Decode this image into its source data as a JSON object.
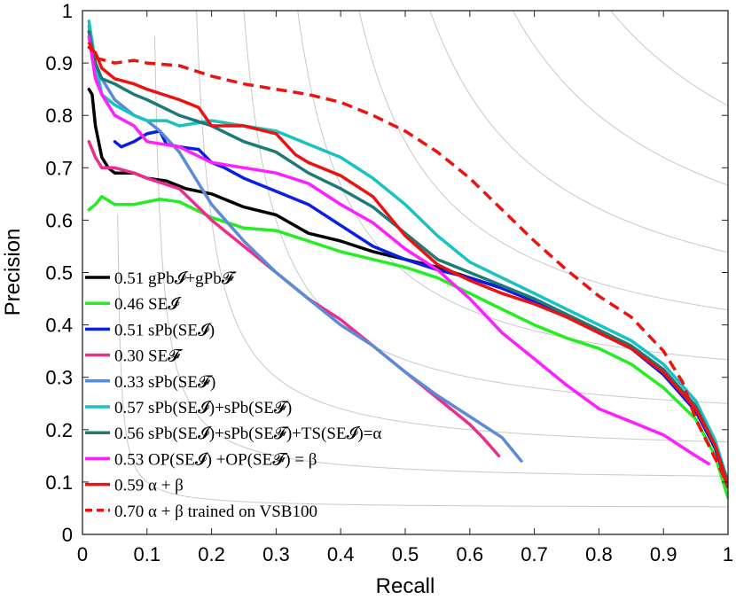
{
  "chart_data": {
    "type": "line",
    "xlabel": "Recall",
    "ylabel": "Precision",
    "xlim": [
      0,
      1
    ],
    "ylim": [
      0,
      1
    ],
    "xticks": [
      0,
      0.1,
      0.2,
      0.3,
      0.4,
      0.5,
      0.6,
      0.7,
      0.8,
      0.9,
      1
    ],
    "yticks": [
      0,
      0.1,
      0.2,
      0.3,
      0.4,
      0.5,
      0.6,
      0.7,
      0.8,
      0.9,
      1
    ],
    "xtick_labels": [
      "0",
      "0.1",
      "0.2",
      "0.3",
      "0.4",
      "0.5",
      "0.6",
      "0.7",
      "0.8",
      "0.9",
      "1"
    ],
    "ytick_labels": [
      "0",
      "0.1",
      "0.2",
      "0.3",
      "0.4",
      "0.5",
      "0.6",
      "0.7",
      "0.8",
      "0.9",
      "1"
    ],
    "grid": false,
    "iso_f_contours": [
      0.1,
      0.2,
      0.3,
      0.4,
      0.5,
      0.6,
      0.7,
      0.8,
      0.9
    ],
    "legend_position": "bottom-left",
    "series": [
      {
        "name": "0.51 gPb_I+gPb_F",
        "legend": {
          "score": "0.51",
          "label": "gPb𝓘+gPb𝓕"
        },
        "color": "#000000",
        "dash": "solid",
        "points": [
          [
            0.01,
            0.85
          ],
          [
            0.015,
            0.84
          ],
          [
            0.02,
            0.78
          ],
          [
            0.03,
            0.72
          ],
          [
            0.04,
            0.7
          ],
          [
            0.05,
            0.69
          ],
          [
            0.08,
            0.69
          ],
          [
            0.1,
            0.68
          ],
          [
            0.13,
            0.675
          ],
          [
            0.16,
            0.66
          ],
          [
            0.2,
            0.65
          ],
          [
            0.25,
            0.625
          ],
          [
            0.3,
            0.61
          ],
          [
            0.35,
            0.575
          ],
          [
            0.4,
            0.56
          ],
          [
            0.45,
            0.54
          ],
          [
            0.5,
            0.525
          ],
          [
            0.55,
            0.51
          ],
          [
            0.6,
            0.49
          ],
          [
            0.65,
            0.47
          ],
          [
            0.7,
            0.445
          ],
          [
            0.75,
            0.42
          ],
          [
            0.8,
            0.39
          ],
          [
            0.85,
            0.36
          ],
          [
            0.9,
            0.31
          ],
          [
            0.95,
            0.24
          ],
          [
            0.98,
            0.17
          ],
          [
            1.0,
            0.1
          ]
        ]
      },
      {
        "name": "0.46 SE_I",
        "legend": {
          "score": "0.46",
          "label": "SE𝓘"
        },
        "color": "#22ee22",
        "dash": "solid",
        "points": [
          [
            0.01,
            0.62
          ],
          [
            0.02,
            0.63
          ],
          [
            0.03,
            0.645
          ],
          [
            0.05,
            0.63
          ],
          [
            0.08,
            0.63
          ],
          [
            0.1,
            0.635
          ],
          [
            0.12,
            0.64
          ],
          [
            0.15,
            0.635
          ],
          [
            0.2,
            0.605
          ],
          [
            0.25,
            0.585
          ],
          [
            0.3,
            0.58
          ],
          [
            0.35,
            0.56
          ],
          [
            0.4,
            0.54
          ],
          [
            0.45,
            0.525
          ],
          [
            0.5,
            0.51
          ],
          [
            0.55,
            0.49
          ],
          [
            0.6,
            0.46
          ],
          [
            0.65,
            0.43
          ],
          [
            0.7,
            0.4
          ],
          [
            0.75,
            0.375
          ],
          [
            0.8,
            0.355
          ],
          [
            0.85,
            0.325
          ],
          [
            0.9,
            0.28
          ],
          [
            0.95,
            0.22
          ],
          [
            0.98,
            0.15
          ],
          [
            1.0,
            0.07
          ]
        ]
      },
      {
        "name": "0.51 sPb(SE_I)",
        "legend": {
          "score": "0.51",
          "label": "sPb(SE𝓘)"
        },
        "color": "#0b1ee6",
        "dash": "solid",
        "points": [
          [
            0.05,
            0.75
          ],
          [
            0.06,
            0.74
          ],
          [
            0.08,
            0.75
          ],
          [
            0.1,
            0.765
          ],
          [
            0.12,
            0.77
          ],
          [
            0.13,
            0.745
          ],
          [
            0.15,
            0.74
          ],
          [
            0.18,
            0.735
          ],
          [
            0.2,
            0.71
          ],
          [
            0.22,
            0.7
          ],
          [
            0.25,
            0.68
          ],
          [
            0.3,
            0.655
          ],
          [
            0.35,
            0.63
          ],
          [
            0.4,
            0.59
          ],
          [
            0.45,
            0.55
          ],
          [
            0.5,
            0.525
          ],
          [
            0.55,
            0.505
          ],
          [
            0.6,
            0.49
          ],
          [
            0.65,
            0.47
          ],
          [
            0.7,
            0.445
          ],
          [
            0.75,
            0.415
          ],
          [
            0.8,
            0.385
          ],
          [
            0.85,
            0.355
          ],
          [
            0.9,
            0.305
          ],
          [
            0.95,
            0.235
          ],
          [
            0.98,
            0.165
          ],
          [
            1.0,
            0.09
          ]
        ]
      },
      {
        "name": "0.30 SE_F",
        "legend": {
          "score": "0.30",
          "label": "SE𝓕"
        },
        "color": "#ee2c8e",
        "dash": "solid",
        "points": [
          [
            0.01,
            0.75
          ],
          [
            0.02,
            0.72
          ],
          [
            0.03,
            0.7
          ],
          [
            0.05,
            0.7
          ],
          [
            0.08,
            0.69
          ],
          [
            0.1,
            0.68
          ],
          [
            0.15,
            0.66
          ],
          [
            0.2,
            0.6
          ],
          [
            0.25,
            0.55
          ],
          [
            0.3,
            0.5
          ],
          [
            0.35,
            0.45
          ],
          [
            0.4,
            0.41
          ],
          [
            0.45,
            0.36
          ],
          [
            0.5,
            0.31
          ],
          [
            0.55,
            0.26
          ],
          [
            0.6,
            0.21
          ],
          [
            0.62,
            0.185
          ],
          [
            0.645,
            0.15
          ]
        ]
      },
      {
        "name": "0.33 sPb(SE_F)",
        "legend": {
          "score": "0.33",
          "label": "sPb(SE𝓕)"
        },
        "color": "#5b8bd6",
        "dash": "solid",
        "points": [
          [
            0.01,
            0.97
          ],
          [
            0.02,
            0.9
          ],
          [
            0.03,
            0.87
          ],
          [
            0.05,
            0.83
          ],
          [
            0.08,
            0.8
          ],
          [
            0.1,
            0.79
          ],
          [
            0.12,
            0.77
          ],
          [
            0.15,
            0.73
          ],
          [
            0.18,
            0.67
          ],
          [
            0.2,
            0.63
          ],
          [
            0.25,
            0.56
          ],
          [
            0.3,
            0.5
          ],
          [
            0.35,
            0.45
          ],
          [
            0.4,
            0.4
          ],
          [
            0.45,
            0.36
          ],
          [
            0.5,
            0.31
          ],
          [
            0.55,
            0.265
          ],
          [
            0.6,
            0.225
          ],
          [
            0.65,
            0.185
          ],
          [
            0.68,
            0.14
          ]
        ]
      },
      {
        "name": "0.57 sPb(SE_I)+sPb(SE_F)",
        "legend": {
          "score": "0.57",
          "label": "sPb(SE𝓘)+sPb(SE𝓕)"
        },
        "color": "#18c2c2",
        "dash": "solid",
        "points": [
          [
            0.01,
            0.98
          ],
          [
            0.02,
            0.9
          ],
          [
            0.03,
            0.84
          ],
          [
            0.05,
            0.82
          ],
          [
            0.08,
            0.8
          ],
          [
            0.1,
            0.79
          ],
          [
            0.13,
            0.79
          ],
          [
            0.15,
            0.78
          ],
          [
            0.2,
            0.79
          ],
          [
            0.25,
            0.78
          ],
          [
            0.3,
            0.77
          ],
          [
            0.35,
            0.745
          ],
          [
            0.4,
            0.72
          ],
          [
            0.45,
            0.68
          ],
          [
            0.5,
            0.63
          ],
          [
            0.55,
            0.57
          ],
          [
            0.6,
            0.52
          ],
          [
            0.65,
            0.49
          ],
          [
            0.7,
            0.46
          ],
          [
            0.75,
            0.43
          ],
          [
            0.8,
            0.4
          ],
          [
            0.85,
            0.37
          ],
          [
            0.9,
            0.325
          ],
          [
            0.95,
            0.255
          ],
          [
            0.98,
            0.18
          ],
          [
            1.0,
            0.1
          ]
        ]
      },
      {
        "name": "0.56 sPb(SE_I)+sPb(SE_F)+TS(SE_I)=α",
        "legend": {
          "score": "0.56",
          "label": "sPb(SE𝓘)+sPb(SE𝓕)+TS(SE𝓘)=α"
        },
        "color": "#1e7a76",
        "dash": "solid",
        "points": [
          [
            0.01,
            0.96
          ],
          [
            0.02,
            0.9
          ],
          [
            0.03,
            0.87
          ],
          [
            0.05,
            0.86
          ],
          [
            0.08,
            0.84
          ],
          [
            0.1,
            0.83
          ],
          [
            0.15,
            0.8
          ],
          [
            0.2,
            0.78
          ],
          [
            0.25,
            0.75
          ],
          [
            0.3,
            0.73
          ],
          [
            0.35,
            0.69
          ],
          [
            0.4,
            0.66
          ],
          [
            0.45,
            0.625
          ],
          [
            0.5,
            0.575
          ],
          [
            0.55,
            0.525
          ],
          [
            0.6,
            0.5
          ],
          [
            0.65,
            0.475
          ],
          [
            0.7,
            0.45
          ],
          [
            0.75,
            0.42
          ],
          [
            0.8,
            0.39
          ],
          [
            0.85,
            0.36
          ],
          [
            0.9,
            0.315
          ],
          [
            0.95,
            0.245
          ],
          [
            0.98,
            0.17
          ],
          [
            1.0,
            0.1
          ]
        ]
      },
      {
        "name": "0.53 OP(SE_I)+OP(SE_F) = β",
        "legend": {
          "score": "0.53",
          "label": "OP(SE𝓘) +OP(SE𝓕) = β"
        },
        "color": "#ff1eff",
        "dash": "solid",
        "points": [
          [
            0.01,
            0.95
          ],
          [
            0.02,
            0.87
          ],
          [
            0.03,
            0.84
          ],
          [
            0.05,
            0.8
          ],
          [
            0.08,
            0.78
          ],
          [
            0.1,
            0.75
          ],
          [
            0.15,
            0.74
          ],
          [
            0.2,
            0.71
          ],
          [
            0.25,
            0.7
          ],
          [
            0.3,
            0.69
          ],
          [
            0.35,
            0.67
          ],
          [
            0.4,
            0.63
          ],
          [
            0.45,
            0.595
          ],
          [
            0.5,
            0.545
          ],
          [
            0.55,
            0.505
          ],
          [
            0.6,
            0.45
          ],
          [
            0.65,
            0.385
          ],
          [
            0.7,
            0.335
          ],
          [
            0.75,
            0.285
          ],
          [
            0.8,
            0.24
          ],
          [
            0.85,
            0.215
          ],
          [
            0.9,
            0.19
          ],
          [
            0.95,
            0.15
          ],
          [
            0.97,
            0.135
          ]
        ]
      },
      {
        "name": "0.59 α + β",
        "legend": {
          "score": "0.59",
          "label": "α + β"
        },
        "color": "#ee1111",
        "dash": "solid",
        "points": [
          [
            0.01,
            0.93
          ],
          [
            0.02,
            0.92
          ],
          [
            0.03,
            0.89
          ],
          [
            0.05,
            0.87
          ],
          [
            0.08,
            0.86
          ],
          [
            0.1,
            0.85
          ],
          [
            0.15,
            0.83
          ],
          [
            0.18,
            0.815
          ],
          [
            0.2,
            0.78
          ],
          [
            0.25,
            0.78
          ],
          [
            0.3,
            0.765
          ],
          [
            0.33,
            0.725
          ],
          [
            0.35,
            0.71
          ],
          [
            0.4,
            0.685
          ],
          [
            0.45,
            0.645
          ],
          [
            0.5,
            0.57
          ],
          [
            0.55,
            0.515
          ],
          [
            0.6,
            0.485
          ],
          [
            0.65,
            0.46
          ],
          [
            0.7,
            0.44
          ],
          [
            0.75,
            0.415
          ],
          [
            0.8,
            0.385
          ],
          [
            0.85,
            0.355
          ],
          [
            0.9,
            0.31
          ],
          [
            0.95,
            0.24
          ],
          [
            0.98,
            0.17
          ],
          [
            1.0,
            0.09
          ]
        ]
      },
      {
        "name": "0.70 α + β trained on VSB100",
        "legend": {
          "score": "0.70",
          "label": "α + β trained on VSB100"
        },
        "color": "#ee1111",
        "dash": "dashed",
        "points": [
          [
            0.01,
            0.94
          ],
          [
            0.02,
            0.91
          ],
          [
            0.05,
            0.9
          ],
          [
            0.08,
            0.905
          ],
          [
            0.1,
            0.9
          ],
          [
            0.15,
            0.895
          ],
          [
            0.2,
            0.875
          ],
          [
            0.25,
            0.86
          ],
          [
            0.3,
            0.85
          ],
          [
            0.35,
            0.84
          ],
          [
            0.4,
            0.825
          ],
          [
            0.45,
            0.8
          ],
          [
            0.5,
            0.77
          ],
          [
            0.55,
            0.73
          ],
          [
            0.6,
            0.68
          ],
          [
            0.65,
            0.62
          ],
          [
            0.7,
            0.56
          ],
          [
            0.75,
            0.505
          ],
          [
            0.8,
            0.455
          ],
          [
            0.85,
            0.415
          ],
          [
            0.9,
            0.35
          ],
          [
            0.93,
            0.29
          ],
          [
            0.95,
            0.22
          ],
          [
            0.97,
            0.17
          ],
          [
            0.99,
            0.12
          ],
          [
            1.0,
            0.09
          ]
        ]
      }
    ]
  }
}
